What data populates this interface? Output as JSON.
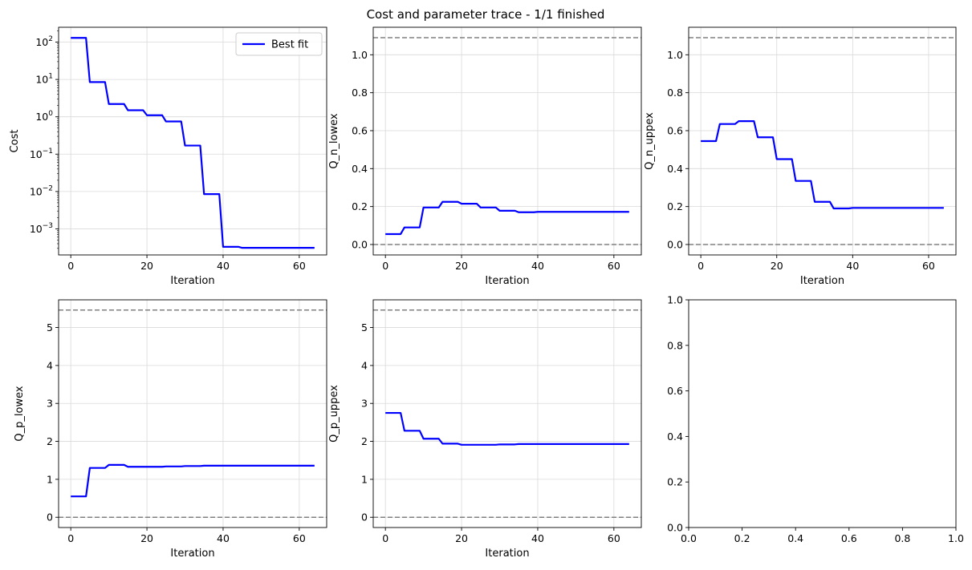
{
  "figure": {
    "title": "Cost and parameter trace - 1/1 finished"
  },
  "colors": {
    "series": "#0000ff",
    "bounds": "#808080",
    "grid": "#d9d9d9",
    "axes": "#000000"
  },
  "chart_data": [
    {
      "type": "line",
      "title": "",
      "xlabel": "Iteration",
      "ylabel": "Cost",
      "yscale": "log",
      "xlim": [
        -3.2,
        67.2
      ],
      "ylim": [
        0.0002,
        250
      ],
      "xticks": [
        0,
        20,
        40,
        60
      ],
      "yticks": [
        0.001,
        0.01,
        0.1,
        1,
        10,
        100
      ],
      "ytick_labels": [
        "10^-3",
        "10^-2",
        "10^-1",
        "10^0",
        "10^1",
        "10^2"
      ],
      "grid": true,
      "legend": {
        "position": "top-right",
        "entries": [
          "Best fit"
        ]
      },
      "series": [
        {
          "name": "Best fit",
          "x": [
            0,
            4,
            5,
            9,
            10,
            14,
            15,
            19,
            20,
            24,
            25,
            29,
            30,
            34,
            35,
            39,
            40,
            44,
            45,
            64
          ],
          "y": [
            130,
            130,
            8.5,
            8.5,
            2.2,
            2.2,
            1.5,
            1.5,
            1.1,
            1.1,
            0.75,
            0.75,
            0.17,
            0.17,
            0.0085,
            0.0085,
            0.00033,
            0.00033,
            0.00031,
            0.00031
          ]
        }
      ],
      "hlines": []
    },
    {
      "type": "line",
      "title": "",
      "xlabel": "Iteration",
      "ylabel": "Q_n_lowex",
      "yscale": "linear",
      "xlim": [
        -3.2,
        67.2
      ],
      "ylim": [
        -0.055,
        1.145
      ],
      "xticks": [
        0,
        20,
        40,
        60
      ],
      "yticks": [
        0.0,
        0.2,
        0.4,
        0.6,
        0.8,
        1.0
      ],
      "ytick_labels": [
        "0.0",
        "0.2",
        "0.4",
        "0.6",
        "0.8",
        "1.0"
      ],
      "grid": true,
      "series": [
        {
          "x": [
            0,
            4,
            5,
            9,
            10,
            14,
            15,
            19,
            20,
            24,
            25,
            29,
            30,
            34,
            35,
            39,
            40,
            64
          ],
          "y": [
            0.055,
            0.055,
            0.09,
            0.09,
            0.195,
            0.195,
            0.225,
            0.225,
            0.215,
            0.215,
            0.195,
            0.195,
            0.178,
            0.178,
            0.17,
            0.17,
            0.172,
            0.172
          ]
        }
      ],
      "hlines": [
        0.0,
        1.09
      ]
    },
    {
      "type": "line",
      "title": "",
      "xlabel": "Iteration",
      "ylabel": "Q_n_uppex",
      "yscale": "linear",
      "xlim": [
        -3.2,
        67.2
      ],
      "ylim": [
        -0.055,
        1.145
      ],
      "xticks": [
        0,
        20,
        40,
        60
      ],
      "yticks": [
        0.0,
        0.2,
        0.4,
        0.6,
        0.8,
        1.0
      ],
      "ytick_labels": [
        "0.0",
        "0.2",
        "0.4",
        "0.6",
        "0.8",
        "1.0"
      ],
      "grid": true,
      "series": [
        {
          "x": [
            0,
            4,
            5,
            9,
            10,
            14,
            15,
            19,
            20,
            24,
            25,
            29,
            30,
            34,
            35,
            39,
            40,
            64
          ],
          "y": [
            0.545,
            0.545,
            0.635,
            0.635,
            0.65,
            0.65,
            0.565,
            0.565,
            0.45,
            0.45,
            0.335,
            0.335,
            0.225,
            0.225,
            0.19,
            0.19,
            0.193,
            0.193
          ]
        }
      ],
      "hlines": [
        0.0,
        1.09
      ]
    },
    {
      "type": "line",
      "title": "",
      "xlabel": "Iteration",
      "ylabel": "Q_p_lowex",
      "yscale": "linear",
      "xlim": [
        -3.2,
        67.2
      ],
      "ylim": [
        -0.27,
        5.73
      ],
      "xticks": [
        0,
        20,
        40,
        60
      ],
      "yticks": [
        0,
        1,
        2,
        3,
        4,
        5
      ],
      "ytick_labels": [
        "0",
        "1",
        "2",
        "3",
        "4",
        "5"
      ],
      "grid": true,
      "series": [
        {
          "x": [
            0,
            4,
            5,
            9,
            10,
            14,
            15,
            24,
            25,
            29,
            30,
            34,
            35,
            64
          ],
          "y": [
            0.55,
            0.55,
            1.3,
            1.3,
            1.38,
            1.38,
            1.33,
            1.33,
            1.34,
            1.34,
            1.35,
            1.35,
            1.36,
            1.36
          ]
        }
      ],
      "hlines": [
        0.0,
        5.46
      ]
    },
    {
      "type": "line",
      "title": "",
      "xlabel": "Iteration",
      "ylabel": "Q_p_uppex",
      "yscale": "linear",
      "xlim": [
        -3.2,
        67.2
      ],
      "ylim": [
        -0.27,
        5.73
      ],
      "xticks": [
        0,
        20,
        40,
        60
      ],
      "yticks": [
        0,
        1,
        2,
        3,
        4,
        5
      ],
      "ytick_labels": [
        "0",
        "1",
        "2",
        "3",
        "4",
        "5"
      ],
      "grid": true,
      "series": [
        {
          "x": [
            0,
            4,
            5,
            9,
            10,
            14,
            15,
            19,
            20,
            29,
            30,
            34,
            35,
            64
          ],
          "y": [
            2.75,
            2.75,
            2.28,
            2.28,
            2.07,
            2.07,
            1.94,
            1.94,
            1.91,
            1.91,
            1.92,
            1.92,
            1.93,
            1.93
          ]
        }
      ],
      "hlines": [
        0.0,
        5.46
      ]
    },
    {
      "type": "line",
      "title": "",
      "xlabel": "",
      "ylabel": "",
      "yscale": "linear",
      "xlim": [
        0,
        1
      ],
      "ylim": [
        0,
        1
      ],
      "xticks": [
        0,
        0.2,
        0.4,
        0.6,
        0.8,
        1.0
      ],
      "xtick_labels": [
        "0.0",
        "0.2",
        "0.4",
        "0.6",
        "0.8",
        "1.0"
      ],
      "yticks": [
        0,
        0.2,
        0.4,
        0.6,
        0.8,
        1.0
      ],
      "ytick_labels": [
        "0.0",
        "0.2",
        "0.4",
        "0.6",
        "0.8",
        "1.0"
      ],
      "grid": false,
      "series": [],
      "hlines": []
    }
  ]
}
